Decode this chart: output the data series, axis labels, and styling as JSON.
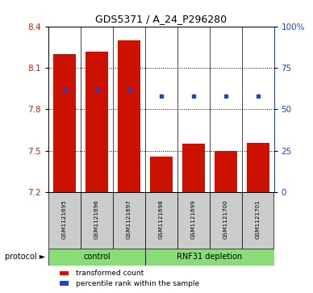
{
  "title": "GDS5371 / A_24_P296280",
  "samples": [
    "GSM1121695",
    "GSM1121696",
    "GSM1121697",
    "GSM1121698",
    "GSM1121699",
    "GSM1121700",
    "GSM1121701"
  ],
  "bar_values": [
    8.2,
    8.22,
    8.3,
    7.46,
    7.55,
    7.5,
    7.56
  ],
  "percentile_values": [
    62,
    62,
    62,
    58,
    58,
    58,
    58
  ],
  "ylim": [
    7.2,
    8.4
  ],
  "yticks": [
    7.2,
    7.5,
    7.8,
    8.1,
    8.4
  ],
  "right_yticks": [
    0,
    25,
    50,
    75,
    100
  ],
  "control_count": 3,
  "rnf31_count": 4,
  "bar_color": "#cc1100",
  "blue_color": "#2244cc",
  "tick_color_left": "#cc2200",
  "tick_color_right": "#2244cc",
  "label_box_color": "#cccccc",
  "green_color": "#88dd77",
  "legend_items": [
    {
      "label": "transformed count",
      "color": "#cc1100"
    },
    {
      "label": "percentile rank within the sample",
      "color": "#2244cc"
    }
  ]
}
